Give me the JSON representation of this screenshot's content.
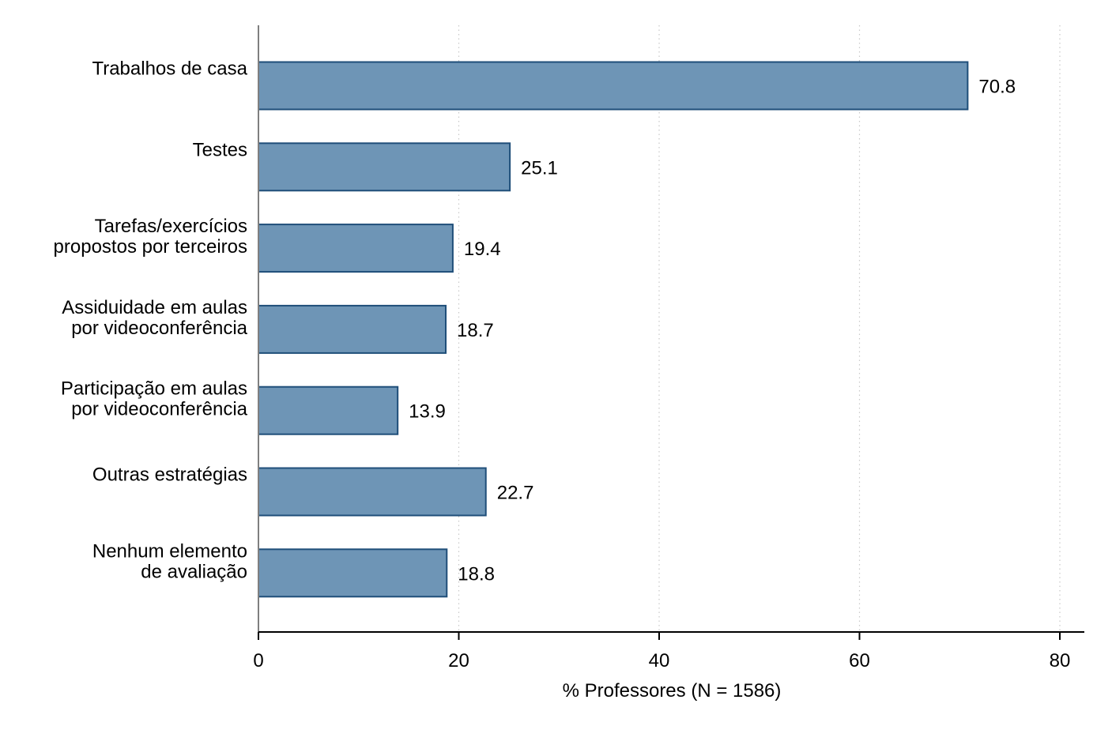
{
  "chart_data": {
    "type": "bar",
    "orientation": "horizontal",
    "categories": [
      [
        "Trabalhos de casa"
      ],
      [
        "Testes"
      ],
      [
        "Tarefas/exercícios",
        "propostos por terceiros"
      ],
      [
        "Assiduidade em aulas",
        "por videoconferência"
      ],
      [
        "Participação em aulas",
        "por videoconferência"
      ],
      [
        "Outras estratégias"
      ],
      [
        "Nenhum elemento",
        "de avaliação"
      ]
    ],
    "values": [
      70.8,
      25.1,
      19.4,
      18.7,
      13.9,
      22.7,
      18.8
    ],
    "value_labels": [
      "70.8",
      "25.1",
      "19.4",
      "18.7",
      "13.9",
      "22.7",
      "18.8"
    ],
    "xlabel": "% Professores (N = 1586)",
    "xlim": [
      0,
      80
    ],
    "xticks": [
      0,
      20,
      40,
      60,
      80
    ],
    "xtick_labels": [
      "0",
      "20",
      "40",
      "60",
      "80"
    ],
    "grid": "vertical-dotted",
    "legend": "none",
    "colors": {
      "bar_fill": "#6e95b6",
      "bar_stroke": "#1f4e79",
      "grid": "#c8c8c8",
      "axis": "#000000"
    }
  }
}
